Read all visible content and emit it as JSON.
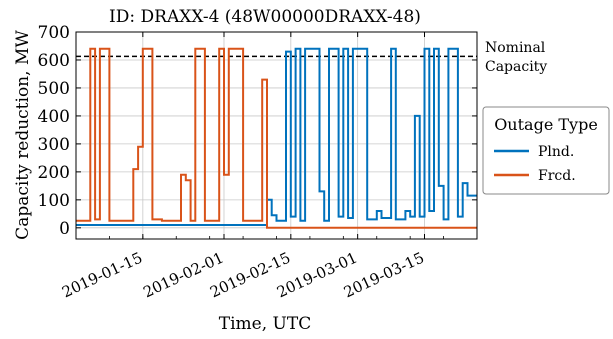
{
  "chart_data": {
    "type": "line",
    "title": "ID: DRAXX-4 (48W00000DRAXX-48)",
    "xlabel": "Time, UTC",
    "ylabel": "Capacity reduction, MW",
    "x_range": [
      "2019-01-01",
      "2019-03-26"
    ],
    "ylim": [
      -40,
      700
    ],
    "yticks": [
      0,
      100,
      200,
      300,
      400,
      500,
      600,
      700
    ],
    "xticks": [
      "2019-01-15",
      "2019-02-01",
      "2019-02-15",
      "2019-03-01",
      "2019-03-15"
    ],
    "grid": true,
    "nominal_capacity": {
      "value": 613,
      "label_line1": "Nominal",
      "label_line2": "Capacity",
      "color": "#000000"
    },
    "legend": {
      "title": "Outage Type",
      "placement": "right-outside"
    },
    "series": [
      {
        "name": "Plnd.",
        "color": "#0072bd",
        "points": [
          [
            "2019-01-01",
            10
          ],
          [
            "2019-02-10",
            10
          ],
          [
            "2019-02-10",
            100
          ],
          [
            "2019-02-11",
            100
          ],
          [
            "2019-02-11",
            45
          ],
          [
            "2019-02-12",
            45
          ],
          [
            "2019-02-12",
            25
          ],
          [
            "2019-02-14",
            25
          ],
          [
            "2019-02-14",
            630
          ],
          [
            "2019-02-15",
            630
          ],
          [
            "2019-02-15",
            40
          ],
          [
            "2019-02-16",
            40
          ],
          [
            "2019-02-16",
            640
          ],
          [
            "2019-02-17",
            640
          ],
          [
            "2019-02-17",
            25
          ],
          [
            "2019-02-18",
            25
          ],
          [
            "2019-02-18",
            640
          ],
          [
            "2019-02-21",
            640
          ],
          [
            "2019-02-21",
            130
          ],
          [
            "2019-02-22",
            130
          ],
          [
            "2019-02-22",
            25
          ],
          [
            "2019-02-23",
            25
          ],
          [
            "2019-02-23",
            640
          ],
          [
            "2019-02-25",
            640
          ],
          [
            "2019-02-25",
            40
          ],
          [
            "2019-02-26",
            40
          ],
          [
            "2019-02-26",
            640
          ],
          [
            "2019-02-27",
            640
          ],
          [
            "2019-02-27",
            35
          ],
          [
            "2019-02-28",
            35
          ],
          [
            "2019-02-28",
            640
          ],
          [
            "2019-03-03",
            640
          ],
          [
            "2019-03-03",
            30
          ],
          [
            "2019-03-05",
            30
          ],
          [
            "2019-03-05",
            60
          ],
          [
            "2019-03-06",
            60
          ],
          [
            "2019-03-06",
            35
          ],
          [
            "2019-03-08",
            35
          ],
          [
            "2019-03-08",
            640
          ],
          [
            "2019-03-09",
            640
          ],
          [
            "2019-03-09",
            30
          ],
          [
            "2019-03-11",
            30
          ],
          [
            "2019-03-11",
            60
          ],
          [
            "2019-03-12",
            60
          ],
          [
            "2019-03-12",
            40
          ],
          [
            "2019-03-13",
            40
          ],
          [
            "2019-03-13",
            400
          ],
          [
            "2019-03-14",
            400
          ],
          [
            "2019-03-14",
            40
          ],
          [
            "2019-03-15",
            40
          ],
          [
            "2019-03-15",
            640
          ],
          [
            "2019-03-16",
            640
          ],
          [
            "2019-03-16",
            60
          ],
          [
            "2019-03-17",
            60
          ],
          [
            "2019-03-17",
            640
          ],
          [
            "2019-03-18",
            640
          ],
          [
            "2019-03-18",
            150
          ],
          [
            "2019-03-19",
            150
          ],
          [
            "2019-03-19",
            30
          ],
          [
            "2019-03-20",
            30
          ],
          [
            "2019-03-20",
            640
          ],
          [
            "2019-03-22",
            640
          ],
          [
            "2019-03-22",
            40
          ],
          [
            "2019-03-23",
            40
          ],
          [
            "2019-03-23",
            160
          ],
          [
            "2019-03-24",
            160
          ],
          [
            "2019-03-24",
            115
          ],
          [
            "2019-03-26",
            115
          ]
        ]
      },
      {
        "name": "Frcd.",
        "color": "#d95319",
        "points": [
          [
            "2019-01-01",
            25
          ],
          [
            "2019-01-04",
            25
          ],
          [
            "2019-01-04",
            640
          ],
          [
            "2019-01-05",
            640
          ],
          [
            "2019-01-05",
            30
          ],
          [
            "2019-01-06",
            30
          ],
          [
            "2019-01-06",
            640
          ],
          [
            "2019-01-08",
            640
          ],
          [
            "2019-01-08",
            25
          ],
          [
            "2019-01-13",
            25
          ],
          [
            "2019-01-13",
            210
          ],
          [
            "2019-01-14",
            210
          ],
          [
            "2019-01-14",
            290
          ],
          [
            "2019-01-15",
            290
          ],
          [
            "2019-01-15",
            640
          ],
          [
            "2019-01-17",
            640
          ],
          [
            "2019-01-17",
            30
          ],
          [
            "2019-01-19",
            30
          ],
          [
            "2019-01-19",
            25
          ],
          [
            "2019-01-23",
            25
          ],
          [
            "2019-01-23",
            190
          ],
          [
            "2019-01-24",
            190
          ],
          [
            "2019-01-24",
            170
          ],
          [
            "2019-01-25",
            170
          ],
          [
            "2019-01-25",
            25
          ],
          [
            "2019-01-26",
            25
          ],
          [
            "2019-01-26",
            640
          ],
          [
            "2019-01-28",
            640
          ],
          [
            "2019-01-28",
            25
          ],
          [
            "2019-01-31",
            25
          ],
          [
            "2019-01-31",
            640
          ],
          [
            "2019-02-01",
            640
          ],
          [
            "2019-02-01",
            190
          ],
          [
            "2019-02-02",
            190
          ],
          [
            "2019-02-02",
            640
          ],
          [
            "2019-02-05",
            640
          ],
          [
            "2019-02-05",
            25
          ],
          [
            "2019-02-09",
            25
          ],
          [
            "2019-02-09",
            530
          ],
          [
            "2019-02-10",
            530
          ],
          [
            "2019-02-10",
            0
          ],
          [
            "2019-03-26",
            0
          ]
        ]
      }
    ]
  }
}
